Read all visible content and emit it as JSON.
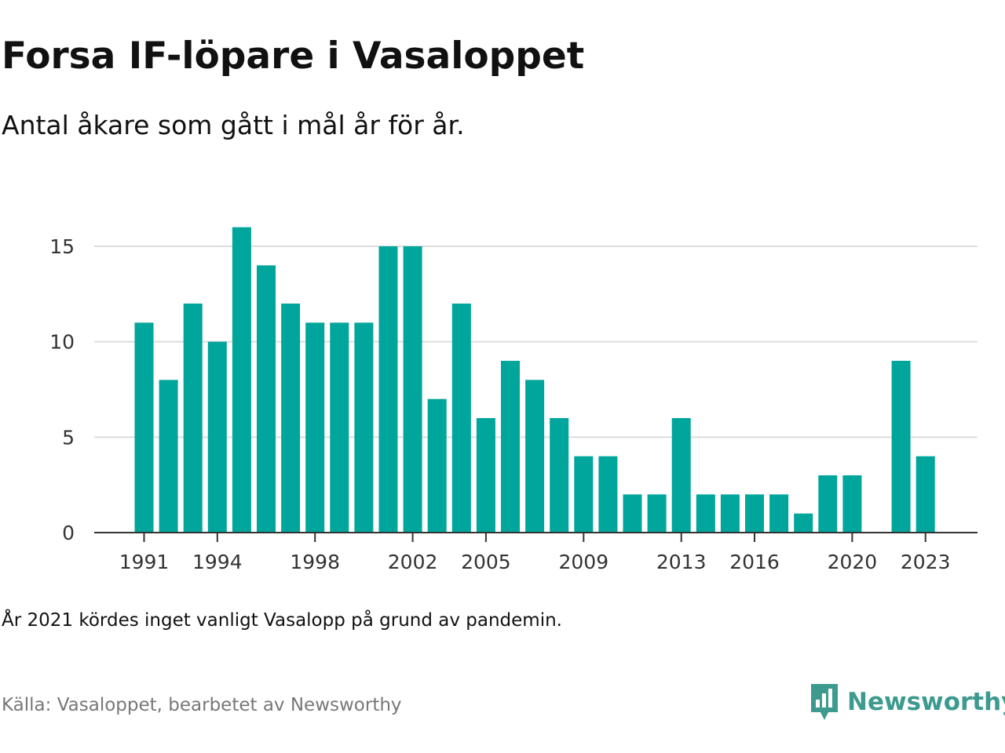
{
  "header": {
    "title": "Forsa IF-löpare i Vasaloppet",
    "subtitle": "Antal åkare som gått i mål år för år."
  },
  "chart_data": {
    "type": "bar",
    "x": [
      1991,
      1992,
      1993,
      1994,
      1995,
      1996,
      1997,
      1998,
      1999,
      2000,
      2001,
      2002,
      2003,
      2004,
      2005,
      2006,
      2007,
      2008,
      2009,
      2010,
      2011,
      2012,
      2013,
      2014,
      2015,
      2016,
      2017,
      2018,
      2019,
      2020,
      2021,
      2022,
      2023
    ],
    "values": [
      11,
      8,
      12,
      10,
      16,
      14,
      12,
      11,
      11,
      11,
      15,
      15,
      7,
      12,
      6,
      9,
      8,
      6,
      4,
      4,
      2,
      2,
      6,
      2,
      2,
      2,
      2,
      1,
      3,
      3,
      null,
      9,
      4
    ],
    "x_tick_labels": [
      1991,
      1994,
      1998,
      2002,
      2005,
      2009,
      2013,
      2016,
      2020,
      2023
    ],
    "y_ticks": [
      0,
      5,
      10,
      15
    ],
    "ylim": [
      0,
      15
    ],
    "grid": "horizontal",
    "bar_color": "#00a59b",
    "title": "Forsa IF-löpare i Vasaloppet",
    "subtitle": "Antal åkare som gått i mål år för år.",
    "xlabel": "",
    "ylabel": ""
  },
  "footer": {
    "note": "År 2021 kördes inget vanligt Vasalopp på grund av pandemin.",
    "source": "Källa: Vasaloppet, bearbetet av Newsworthy",
    "brand": "Newsworthy"
  },
  "colors": {
    "bar": "#00a59b",
    "brand": "#3c9a8e",
    "grid": "#dddddd",
    "axis": "#333333",
    "source_text": "#777777"
  },
  "icons": {
    "brand_logo": "newsworthy-logo-icon"
  }
}
